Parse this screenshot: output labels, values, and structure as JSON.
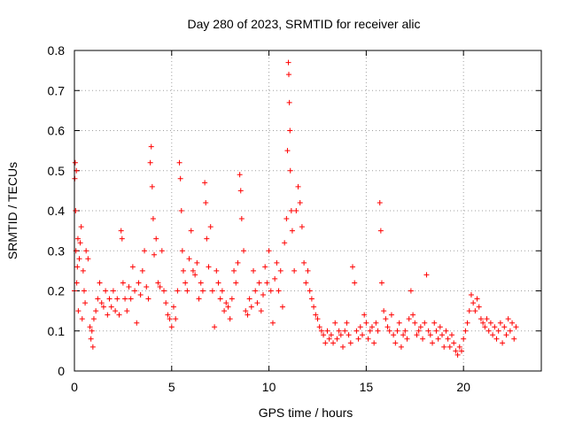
{
  "chart_data": {
    "type": "scatter",
    "title": "Day 280 of 2023, SRMTID for receiver alic",
    "xlabel": "GPS time / hours",
    "ylabel": "SRMTID / TECUs",
    "xlim": [
      0,
      24
    ],
    "ylim": [
      0,
      0.8
    ],
    "x_ticks": [
      0,
      5,
      10,
      15,
      20
    ],
    "x_tick_labels": [
      "0",
      "5",
      "10",
      "15",
      "20"
    ],
    "y_ticks": [
      0,
      0.1,
      0.2,
      0.3,
      0.4,
      0.5,
      0.6,
      0.7,
      0.8
    ],
    "y_tick_labels": [
      "0",
      "0.1",
      "0.2",
      "0.3",
      "0.4",
      "0.5",
      "0.6",
      "0.7",
      "0.8"
    ],
    "grid": true,
    "marker": "+",
    "marker_color": "#ff0000",
    "series": [
      {
        "name": "alic",
        "points": [
          [
            0.0,
            0.2
          ],
          [
            0.02,
            0.48
          ],
          [
            0.04,
            0.52
          ],
          [
            0.06,
            0.4
          ],
          [
            0.08,
            0.3
          ],
          [
            0.1,
            0.5
          ],
          [
            0.12,
            0.22
          ],
          [
            0.15,
            0.26
          ],
          [
            0.18,
            0.33
          ],
          [
            0.2,
            0.15
          ],
          [
            0.25,
            0.28
          ],
          [
            0.3,
            0.32
          ],
          [
            0.35,
            0.36
          ],
          [
            0.4,
            0.13
          ],
          [
            0.45,
            0.25
          ],
          [
            0.5,
            0.2
          ],
          [
            0.55,
            0.17
          ],
          [
            0.6,
            0.3
          ],
          [
            0.7,
            0.28
          ],
          [
            0.8,
            0.11
          ],
          [
            0.85,
            0.08
          ],
          [
            0.9,
            0.1
          ],
          [
            0.95,
            0.06
          ],
          [
            1.0,
            0.13
          ],
          [
            1.1,
            0.15
          ],
          [
            1.2,
            0.18
          ],
          [
            1.3,
            0.22
          ],
          [
            1.4,
            0.17
          ],
          [
            1.5,
            0.16
          ],
          [
            1.6,
            0.2
          ],
          [
            1.7,
            0.14
          ],
          [
            1.8,
            0.18
          ],
          [
            1.9,
            0.16
          ],
          [
            2.0,
            0.2
          ],
          [
            2.1,
            0.15
          ],
          [
            2.2,
            0.18
          ],
          [
            2.3,
            0.14
          ],
          [
            2.4,
            0.35
          ],
          [
            2.45,
            0.33
          ],
          [
            2.5,
            0.22
          ],
          [
            2.6,
            0.18
          ],
          [
            2.7,
            0.15
          ],
          [
            2.8,
            0.21
          ],
          [
            2.9,
            0.18
          ],
          [
            3.0,
            0.26
          ],
          [
            3.1,
            0.2
          ],
          [
            3.2,
            0.12
          ],
          [
            3.3,
            0.22
          ],
          [
            3.4,
            0.19
          ],
          [
            3.5,
            0.25
          ],
          [
            3.6,
            0.3
          ],
          [
            3.7,
            0.21
          ],
          [
            3.8,
            0.18
          ],
          [
            3.9,
            0.52
          ],
          [
            3.95,
            0.56
          ],
          [
            4.0,
            0.46
          ],
          [
            4.05,
            0.38
          ],
          [
            4.1,
            0.29
          ],
          [
            4.2,
            0.33
          ],
          [
            4.3,
            0.22
          ],
          [
            4.4,
            0.21
          ],
          [
            4.5,
            0.3
          ],
          [
            4.6,
            0.2
          ],
          [
            4.7,
            0.17
          ],
          [
            4.8,
            0.14
          ],
          [
            4.9,
            0.13
          ],
          [
            5.0,
            0.11
          ],
          [
            5.1,
            0.16
          ],
          [
            5.2,
            0.13
          ],
          [
            5.3,
            0.2
          ],
          [
            5.4,
            0.52
          ],
          [
            5.45,
            0.48
          ],
          [
            5.5,
            0.4
          ],
          [
            5.55,
            0.3
          ],
          [
            5.6,
            0.25
          ],
          [
            5.7,
            0.22
          ],
          [
            5.8,
            0.2
          ],
          [
            5.9,
            0.28
          ],
          [
            6.0,
            0.35
          ],
          [
            6.1,
            0.25
          ],
          [
            6.2,
            0.24
          ],
          [
            6.3,
            0.27
          ],
          [
            6.4,
            0.18
          ],
          [
            6.5,
            0.22
          ],
          [
            6.6,
            0.2
          ],
          [
            6.7,
            0.47
          ],
          [
            6.75,
            0.42
          ],
          [
            6.8,
            0.33
          ],
          [
            6.9,
            0.26
          ],
          [
            7.0,
            0.36
          ],
          [
            7.1,
            0.2
          ],
          [
            7.2,
            0.11
          ],
          [
            7.3,
            0.25
          ],
          [
            7.4,
            0.22
          ],
          [
            7.5,
            0.18
          ],
          [
            7.6,
            0.2
          ],
          [
            7.7,
            0.15
          ],
          [
            7.8,
            0.17
          ],
          [
            7.9,
            0.16
          ],
          [
            8.0,
            0.13
          ],
          [
            8.1,
            0.18
          ],
          [
            8.2,
            0.25
          ],
          [
            8.3,
            0.22
          ],
          [
            8.4,
            0.27
          ],
          [
            8.5,
            0.49
          ],
          [
            8.55,
            0.45
          ],
          [
            8.6,
            0.38
          ],
          [
            8.7,
            0.3
          ],
          [
            8.8,
            0.15
          ],
          [
            8.9,
            0.14
          ],
          [
            9.0,
            0.18
          ],
          [
            9.1,
            0.16
          ],
          [
            9.2,
            0.25
          ],
          [
            9.3,
            0.2
          ],
          [
            9.4,
            0.17
          ],
          [
            9.5,
            0.22
          ],
          [
            9.6,
            0.15
          ],
          [
            9.7,
            0.19
          ],
          [
            9.8,
            0.26
          ],
          [
            9.9,
            0.22
          ],
          [
            10.0,
            0.3
          ],
          [
            10.1,
            0.2
          ],
          [
            10.2,
            0.12
          ],
          [
            10.3,
            0.23
          ],
          [
            10.4,
            0.27
          ],
          [
            10.5,
            0.2
          ],
          [
            10.6,
            0.25
          ],
          [
            10.7,
            0.16
          ],
          [
            10.8,
            0.32
          ],
          [
            10.9,
            0.38
          ],
          [
            10.95,
            0.55
          ],
          [
            11.0,
            0.77
          ],
          [
            11.02,
            0.74
          ],
          [
            11.05,
            0.67
          ],
          [
            11.08,
            0.6
          ],
          [
            11.1,
            0.5
          ],
          [
            11.15,
            0.4
          ],
          [
            11.2,
            0.35
          ],
          [
            11.3,
            0.25
          ],
          [
            11.4,
            0.4
          ],
          [
            11.5,
            0.46
          ],
          [
            11.6,
            0.42
          ],
          [
            11.7,
            0.36
          ],
          [
            11.8,
            0.27
          ],
          [
            11.9,
            0.22
          ],
          [
            12.0,
            0.25
          ],
          [
            12.1,
            0.2
          ],
          [
            12.2,
            0.18
          ],
          [
            12.3,
            0.16
          ],
          [
            12.4,
            0.14
          ],
          [
            12.5,
            0.13
          ],
          [
            12.6,
            0.11
          ],
          [
            12.7,
            0.1
          ],
          [
            12.8,
            0.09
          ],
          [
            12.9,
            0.07
          ],
          [
            13.0,
            0.1
          ],
          [
            13.1,
            0.08
          ],
          [
            13.2,
            0.09
          ],
          [
            13.3,
            0.07
          ],
          [
            13.4,
            0.12
          ],
          [
            13.5,
            0.08
          ],
          [
            13.6,
            0.1
          ],
          [
            13.7,
            0.09
          ],
          [
            13.8,
            0.06
          ],
          [
            13.9,
            0.1
          ],
          [
            14.0,
            0.12
          ],
          [
            14.1,
            0.09
          ],
          [
            14.2,
            0.07
          ],
          [
            14.3,
            0.26
          ],
          [
            14.4,
            0.22
          ],
          [
            14.5,
            0.1
          ],
          [
            14.6,
            0.08
          ],
          [
            14.7,
            0.11
          ],
          [
            14.8,
            0.09
          ],
          [
            14.9,
            0.14
          ],
          [
            15.0,
            0.12
          ],
          [
            15.1,
            0.08
          ],
          [
            15.2,
            0.1
          ],
          [
            15.3,
            0.11
          ],
          [
            15.4,
            0.07
          ],
          [
            15.5,
            0.12
          ],
          [
            15.6,
            0.1
          ],
          [
            15.7,
            0.42
          ],
          [
            15.75,
            0.35
          ],
          [
            15.8,
            0.22
          ],
          [
            15.9,
            0.15
          ],
          [
            16.0,
            0.13
          ],
          [
            16.1,
            0.11
          ],
          [
            16.2,
            0.1
          ],
          [
            16.3,
            0.14
          ],
          [
            16.4,
            0.09
          ],
          [
            16.5,
            0.07
          ],
          [
            16.6,
            0.1
          ],
          [
            16.7,
            0.12
          ],
          [
            16.8,
            0.06
          ],
          [
            16.9,
            0.09
          ],
          [
            17.0,
            0.1
          ],
          [
            17.1,
            0.08
          ],
          [
            17.2,
            0.13
          ],
          [
            17.3,
            0.2
          ],
          [
            17.4,
            0.14
          ],
          [
            17.5,
            0.12
          ],
          [
            17.6,
            0.09
          ],
          [
            17.7,
            0.1
          ],
          [
            17.8,
            0.11
          ],
          [
            17.9,
            0.08
          ],
          [
            18.0,
            0.12
          ],
          [
            18.1,
            0.24
          ],
          [
            18.2,
            0.1
          ],
          [
            18.3,
            0.09
          ],
          [
            18.4,
            0.07
          ],
          [
            18.5,
            0.12
          ],
          [
            18.6,
            0.1
          ],
          [
            18.7,
            0.08
          ],
          [
            18.8,
            0.11
          ],
          [
            18.9,
            0.09
          ],
          [
            19.0,
            0.06
          ],
          [
            19.1,
            0.1
          ],
          [
            19.2,
            0.08
          ],
          [
            19.3,
            0.06
          ],
          [
            19.4,
            0.09
          ],
          [
            19.5,
            0.07
          ],
          [
            19.6,
            0.05
          ],
          [
            19.7,
            0.04
          ],
          [
            19.8,
            0.06
          ],
          [
            19.9,
            0.05
          ],
          [
            20.0,
            0.08
          ],
          [
            20.1,
            0.1
          ],
          [
            20.2,
            0.12
          ],
          [
            20.3,
            0.15
          ],
          [
            20.4,
            0.19
          ],
          [
            20.5,
            0.17
          ],
          [
            20.6,
            0.15
          ],
          [
            20.7,
            0.18
          ],
          [
            20.8,
            0.16
          ],
          [
            20.9,
            0.13
          ],
          [
            21.0,
            0.12
          ],
          [
            21.1,
            0.11
          ],
          [
            21.2,
            0.13
          ],
          [
            21.3,
            0.1
          ],
          [
            21.4,
            0.12
          ],
          [
            21.5,
            0.09
          ],
          [
            21.6,
            0.11
          ],
          [
            21.7,
            0.08
          ],
          [
            21.8,
            0.1
          ],
          [
            21.9,
            0.12
          ],
          [
            22.0,
            0.07
          ],
          [
            22.1,
            0.11
          ],
          [
            22.2,
            0.09
          ],
          [
            22.3,
            0.13
          ],
          [
            22.4,
            0.1
          ],
          [
            22.5,
            0.12
          ],
          [
            22.6,
            0.08
          ],
          [
            22.7,
            0.11
          ]
        ]
      }
    ]
  }
}
